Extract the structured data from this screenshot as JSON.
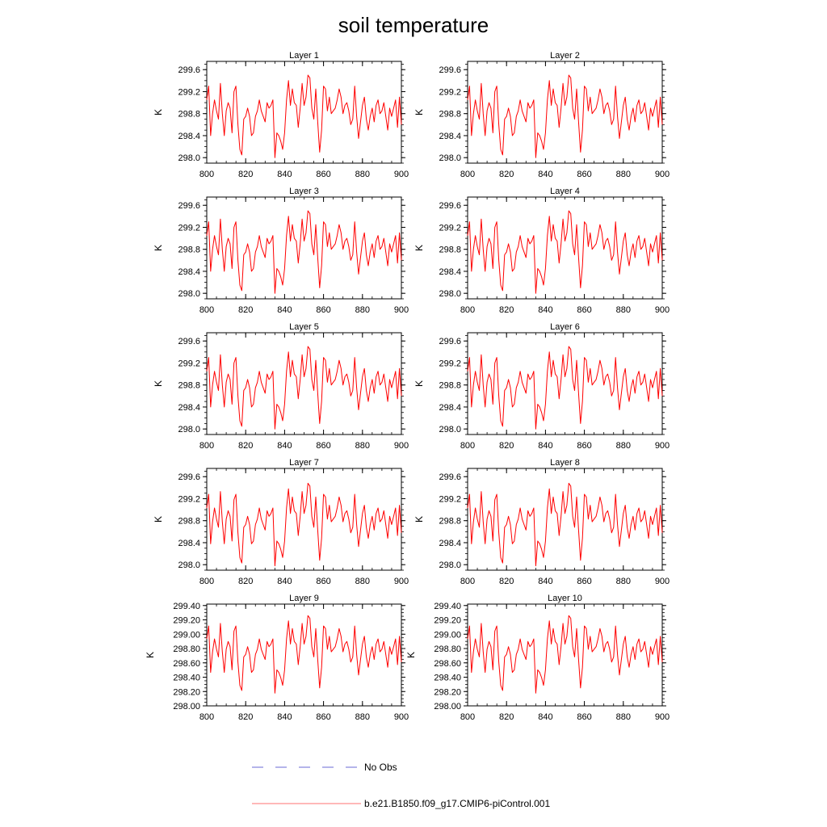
{
  "title": "soil temperature",
  "legend": [
    {
      "label": "No Obs",
      "color": "#6a6ad6",
      "dash": "dashed"
    },
    {
      "label": "b.e21.B1850.f09_g17.CMIP6-piControl.001",
      "color": "#ff0000",
      "dash": "solid"
    }
  ],
  "colors": {
    "series": "#ff0000",
    "obs": "#6a6ad6",
    "axis": "#000000"
  },
  "chart_data": [
    {
      "type": "line",
      "title": "Layer 1",
      "xlabel": "",
      "ylabel": "K",
      "xlim": [
        800,
        900
      ],
      "ylim": [
        297.9,
        299.75
      ],
      "xticks": [
        "800",
        "820",
        "840",
        "860",
        "880",
        "900"
      ],
      "yticks": [
        "298.0",
        "298.4",
        "298.8",
        "299.2",
        "299.6"
      ],
      "series": [
        {
          "name": "b.e21.B1850.f09_g17.CMIP6-piControl.001",
          "anomaly": 0.0
        }
      ]
    },
    {
      "type": "line",
      "title": "Layer 2",
      "xlabel": "",
      "ylabel": "K",
      "xlim": [
        800,
        900
      ],
      "ylim": [
        297.9,
        299.75
      ],
      "xticks": [
        "800",
        "820",
        "840",
        "860",
        "880",
        "900"
      ],
      "yticks": [
        "298.0",
        "298.4",
        "298.8",
        "299.2",
        "299.6"
      ],
      "series": [
        {
          "name": "b.e21.B1850.f09_g17.CMIP6-piControl.001",
          "anomaly": 0.0
        }
      ]
    },
    {
      "type": "line",
      "title": "Layer 3",
      "xlabel": "",
      "ylabel": "K",
      "xlim": [
        800,
        900
      ],
      "ylim": [
        297.9,
        299.75
      ],
      "xticks": [
        "800",
        "820",
        "840",
        "860",
        "880",
        "900"
      ],
      "yticks": [
        "298.0",
        "298.4",
        "298.8",
        "299.2",
        "299.6"
      ],
      "series": [
        {
          "name": "b.e21.B1850.f09_g17.CMIP6-piControl.001",
          "anomaly": 0.0
        }
      ]
    },
    {
      "type": "line",
      "title": "Layer 4",
      "xlabel": "",
      "ylabel": "K",
      "xlim": [
        800,
        900
      ],
      "ylim": [
        297.9,
        299.75
      ],
      "xticks": [
        "800",
        "820",
        "840",
        "860",
        "880",
        "900"
      ],
      "yticks": [
        "298.0",
        "298.4",
        "298.8",
        "299.2",
        "299.6"
      ],
      "series": [
        {
          "name": "b.e21.B1850.f09_g17.CMIP6-piControl.001",
          "anomaly": 0.0
        }
      ]
    },
    {
      "type": "line",
      "title": "Layer 5",
      "xlabel": "",
      "ylabel": "K",
      "xlim": [
        800,
        900
      ],
      "ylim": [
        297.9,
        299.75
      ],
      "xticks": [
        "800",
        "820",
        "840",
        "860",
        "880",
        "900"
      ],
      "yticks": [
        "298.0",
        "298.4",
        "298.8",
        "299.2",
        "299.6"
      ],
      "series": [
        {
          "name": "b.e21.B1850.f09_g17.CMIP6-piControl.001",
          "anomaly": 0.0
        }
      ]
    },
    {
      "type": "line",
      "title": "Layer 6",
      "xlabel": "",
      "ylabel": "K",
      "xlim": [
        800,
        900
      ],
      "ylim": [
        297.9,
        299.75
      ],
      "xticks": [
        "800",
        "820",
        "840",
        "860",
        "880",
        "900"
      ],
      "yticks": [
        "298.0",
        "298.4",
        "298.8",
        "299.2",
        "299.6"
      ],
      "series": [
        {
          "name": "b.e21.B1850.f09_g17.CMIP6-piControl.001",
          "anomaly": 0.0
        }
      ]
    },
    {
      "type": "line",
      "title": "Layer 7",
      "xlabel": "",
      "ylabel": "K",
      "xlim": [
        800,
        900
      ],
      "ylim": [
        297.9,
        299.75
      ],
      "xticks": [
        "800",
        "820",
        "840",
        "860",
        "880",
        "900"
      ],
      "yticks": [
        "298.0",
        "298.4",
        "298.8",
        "299.2",
        "299.6"
      ],
      "series": [
        {
          "name": "b.e21.B1850.f09_g17.CMIP6-piControl.001",
          "anomaly": -0.02
        }
      ]
    },
    {
      "type": "line",
      "title": "Layer 8",
      "xlabel": "",
      "ylabel": "K",
      "xlim": [
        800,
        900
      ],
      "ylim": [
        297.9,
        299.75
      ],
      "xticks": [
        "800",
        "820",
        "840",
        "860",
        "880",
        "900"
      ],
      "yticks": [
        "298.0",
        "298.4",
        "298.8",
        "299.2",
        "299.6"
      ],
      "series": [
        {
          "name": "b.e21.B1850.f09_g17.CMIP6-piControl.001",
          "anomaly": -0.02
        }
      ]
    },
    {
      "type": "line",
      "title": "Layer 9",
      "xlabel": "",
      "ylabel": "K",
      "xlim": [
        800,
        900
      ],
      "ylim": [
        298.0,
        299.42
      ],
      "xticks": [
        "800",
        "820",
        "840",
        "860",
        "880",
        "900"
      ],
      "yticks": [
        "298.00",
        "298.20",
        "298.40",
        "298.60",
        "298.80",
        "299.00",
        "299.20",
        "299.40"
      ],
      "series": [
        {
          "name": "b.e21.B1850.f09_g17.CMIP6-piControl.001",
          "anomaly": -0.03
        }
      ]
    },
    {
      "type": "line",
      "title": "Layer 10",
      "xlabel": "",
      "ylabel": "K",
      "xlim": [
        800,
        900
      ],
      "ylim": [
        298.0,
        299.42
      ],
      "xticks": [
        "800",
        "820",
        "840",
        "860",
        "880",
        "900"
      ],
      "yticks": [
        "298.00",
        "298.20",
        "298.40",
        "298.60",
        "298.80",
        "299.00",
        "299.20",
        "299.40"
      ],
      "series": [
        {
          "name": "b.e21.B1850.f09_g17.CMIP6-piControl.001",
          "anomaly": -0.03
        }
      ]
    }
  ],
  "base_series": {
    "x": [
      800,
      801,
      802,
      803,
      804,
      805,
      806,
      807,
      808,
      809,
      810,
      811,
      812,
      813,
      814,
      815,
      816,
      817,
      818,
      819,
      820,
      821,
      822,
      823,
      824,
      825,
      826,
      827,
      828,
      829,
      830,
      831,
      832,
      833,
      834,
      835,
      836,
      837,
      838,
      839,
      840,
      841,
      842,
      843,
      844,
      845,
      846,
      847,
      848,
      849,
      850,
      851,
      852,
      853,
      854,
      855,
      856,
      857,
      858,
      859,
      860,
      861,
      862,
      863,
      864,
      865,
      866,
      867,
      868,
      869,
      870,
      871,
      872,
      873,
      874,
      875,
      876,
      877,
      878,
      879,
      880,
      881,
      882,
      883,
      884,
      885,
      886,
      887,
      888,
      889,
      890,
      891,
      892,
      893,
      894,
      895,
      896,
      897,
      898,
      899,
      900
    ],
    "y": [
      299.05,
      299.3,
      298.4,
      298.8,
      299.05,
      298.85,
      298.7,
      299.35,
      298.8,
      298.4,
      298.85,
      299.0,
      298.9,
      298.45,
      299.2,
      299.3,
      298.6,
      298.15,
      298.05,
      298.7,
      298.75,
      298.9,
      298.75,
      298.4,
      298.45,
      298.75,
      298.85,
      299.05,
      298.85,
      298.75,
      298.65,
      299.0,
      298.9,
      298.95,
      299.05,
      298.0,
      298.45,
      298.4,
      298.3,
      298.15,
      298.45,
      299.05,
      299.4,
      298.95,
      299.25,
      299.0,
      298.95,
      298.55,
      298.9,
      299.35,
      298.95,
      299.1,
      299.5,
      299.45,
      298.9,
      298.7,
      299.25,
      298.65,
      298.1,
      298.5,
      299.3,
      299.25,
      298.85,
      299.1,
      298.8,
      298.85,
      298.9,
      299.05,
      299.25,
      299.1,
      298.8,
      298.95,
      299.0,
      298.85,
      298.6,
      298.7,
      299.3,
      298.75,
      298.35,
      298.65,
      298.95,
      299.1,
      298.7,
      298.5,
      298.75,
      298.9,
      298.65,
      298.95,
      299.05,
      298.8,
      298.85,
      299.0,
      298.75,
      298.5,
      298.9,
      298.75,
      298.9,
      299.05,
      298.55,
      299.1,
      298.6
    ]
  }
}
